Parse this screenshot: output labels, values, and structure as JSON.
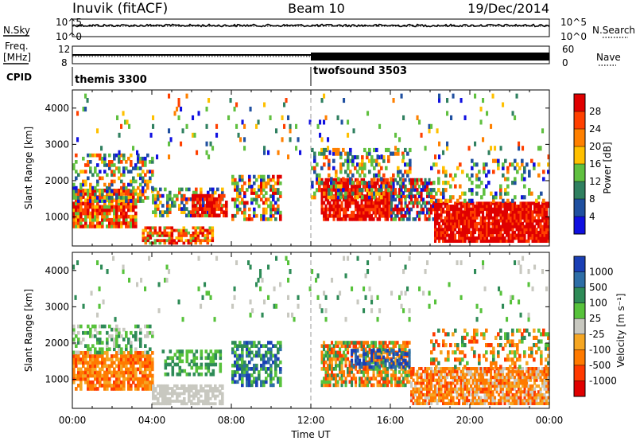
{
  "header": {
    "station": "Inuvik (fitACF)",
    "beam": "Beam 10",
    "date": "19/Dec/2014"
  },
  "params": {
    "nsky_label": "N.Sky",
    "nsearch_label": "N.Search",
    "freq_label_1": "Freq.",
    "freq_label_2": "[MHz]",
    "nave_label": "Nave",
    "cpid_label": "CPID",
    "noise_ticks": [
      "10^5",
      "10^0"
    ],
    "freq_ticks": [
      "12",
      "8"
    ],
    "nave_ticks": [
      "60",
      "0"
    ],
    "cpid_segments": [
      {
        "name": "themis 3300",
        "start_hour": 0,
        "end_hour": 12
      },
      {
        "name": "twofsound 3503",
        "start_hour": 12,
        "end_hour": 24
      }
    ]
  },
  "chart_data": [
    {
      "type": "heatmap",
      "ylabel": "Slant Range [km]",
      "xlabel": "",
      "xlim": [
        0,
        24
      ],
      "ylim": [
        200,
        4500
      ],
      "yticks": [
        1000,
        2000,
        3000,
        4000
      ],
      "colorbar": {
        "label": "Power [dB]",
        "ticks": [
          "28",
          "24",
          "20",
          "16",
          "12",
          "8",
          "4"
        ],
        "colors": [
          "#e00000",
          "#ff4000",
          "#ff8000",
          "#ffc000",
          "#60c040",
          "#308060",
          "#2050a0",
          "#1010e0"
        ]
      },
      "note_colors": {
        "high": "#ee1100",
        "mid": "#f39c12",
        "low": "#2e8b57",
        "faint": "#1d4fa8"
      }
    },
    {
      "type": "heatmap",
      "ylabel": "Slant Range [km]",
      "xlabel": "Time UT",
      "xlim": [
        0,
        24
      ],
      "ylim": [
        200,
        4500
      ],
      "yticks": [
        1000,
        2000,
        3000,
        4000
      ],
      "xticks": [
        "00:00",
        "04:00",
        "08:00",
        "12:00",
        "16:00",
        "20:00",
        "00:00"
      ],
      "colorbar": {
        "label": "Velocity [m s⁻¹]",
        "ticks": [
          "1000",
          "500",
          "100",
          "25",
          "-25",
          "-100",
          "-500",
          "-1000"
        ],
        "colors": [
          "#1a3fb5",
          "#2e6ea6",
          "#2e8b57",
          "#57c23b",
          "#c8c8c0",
          "#f5a623",
          "#ff7a00",
          "#ff3a00",
          "#e00000"
        ]
      }
    }
  ]
}
